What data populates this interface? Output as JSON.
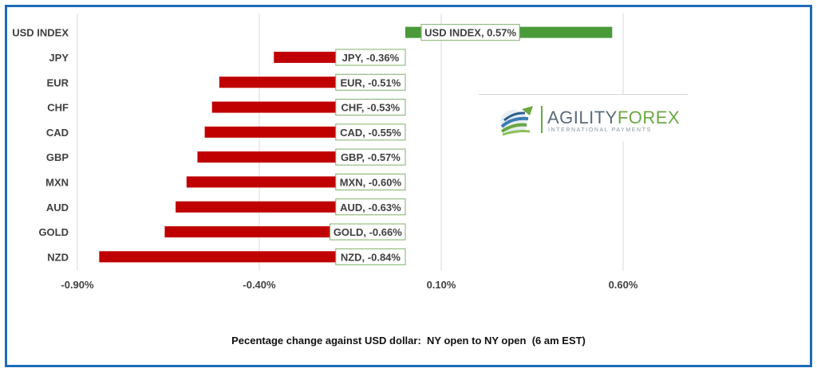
{
  "chart_data": {
    "type": "bar",
    "orientation": "horizontal",
    "categories": [
      "USD INDEX",
      "JPY",
      "EUR",
      "CHF",
      "CAD",
      "GBP",
      "MXN",
      "AUD",
      "GOLD",
      "NZD"
    ],
    "values": [
      0.57,
      -0.36,
      -0.51,
      -0.53,
      -0.55,
      -0.57,
      -0.6,
      -0.63,
      -0.66,
      -0.84
    ],
    "data_labels": [
      "USD INDEX, 0.57%",
      "JPY, -0.36%",
      "EUR, -0.51%",
      "CHF, -0.53%",
      "CAD, -0.55%",
      "GBP, -0.57%",
      "MXN, -0.60%",
      "AUD, -0.63%",
      "GOLD, -0.66%",
      "NZD, -0.84%"
    ],
    "tick_values": [
      -0.9,
      -0.4,
      0.1,
      0.6
    ],
    "tick_labels": [
      "-0.90%",
      "-0.40%",
      "0.10%",
      "0.60%"
    ],
    "xlim": [
      -0.9,
      0.6
    ],
    "xlabel": "Pecentage change against USD dollar:  NY open to NY open  (6 am EST)",
    "grid": true,
    "colors": {
      "positive": "#4a9a3a",
      "negative": "#c00000",
      "grid": "#d9d9d9",
      "frame": "#1e6bb8"
    }
  },
  "logo": {
    "brand_part1": "AGILITY",
    "brand_part2": "FOREX",
    "tagline": "INTERNATIONAL PAYMENTS"
  }
}
